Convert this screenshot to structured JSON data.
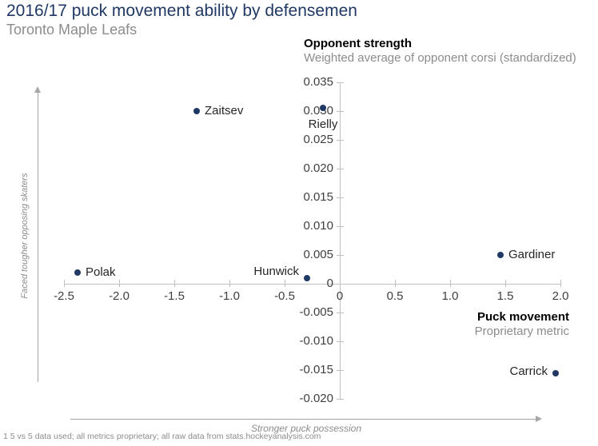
{
  "header": {
    "title": "2016/17 puck movement ability by defensemen",
    "subtitle": "Toronto Maple Leafs"
  },
  "chart_data": {
    "type": "scatter",
    "title": "2016/17 puck movement ability by defensemen",
    "subtitle": "Toronto Maple Leafs",
    "xlabel": "Puck movement",
    "xlabel_sub": "Proprietary metric",
    "ylabel": "Opponent strength",
    "ylabel_sub": "Weighted average of opponent corsi (standardized)",
    "xlim": [
      -2.5,
      2.0
    ],
    "ylim": [
      -0.02,
      0.035
    ],
    "grid": false,
    "legend": "none",
    "x_tick_values": [
      -2.5,
      -2.0,
      -1.5,
      -1.0,
      -0.5,
      0,
      0.5,
      1.0,
      1.5,
      2.0
    ],
    "x_tick_labels": [
      "-2.5",
      "-2.0",
      "-1.5",
      "-1.0",
      "-0.5",
      "0",
      "0.5",
      "1.0",
      "1.5",
      "2.0"
    ],
    "y_tick_values": [
      0.035,
      0.03,
      0.025,
      0.02,
      0.015,
      0.01,
      0.005,
      0,
      -0.005,
      -0.01,
      -0.015,
      -0.02
    ],
    "y_tick_labels": [
      "0.035",
      "0.030",
      "0.025",
      "0.020",
      "0.015",
      "0.010",
      "0.005",
      "0",
      "-0.005",
      "-0.010",
      "-0.015",
      "-0.020"
    ],
    "points": [
      {
        "label": "Zaitsev",
        "x": -1.3,
        "y": 0.03,
        "label_side": "right",
        "label_offset": [
          0,
          0
        ]
      },
      {
        "label": "Rielly",
        "x": -0.15,
        "y": 0.0305,
        "label_side": "below",
        "label_offset": [
          0,
          7
        ]
      },
      {
        "label": "Polak",
        "x": -2.38,
        "y": 0.002,
        "label_side": "right",
        "label_offset": [
          0,
          0
        ]
      },
      {
        "label": "Hunwick",
        "x": -0.3,
        "y": 0.001,
        "label_side": "left",
        "label_offset": [
          0,
          -8
        ]
      },
      {
        "label": "Gardiner",
        "x": 1.46,
        "y": 0.005,
        "label_side": "right",
        "label_offset": [
          0,
          0
        ]
      },
      {
        "label": "Carrick",
        "x": 1.96,
        "y": -0.0155,
        "label_side": "left",
        "label_offset": [
          0,
          -2
        ]
      }
    ]
  },
  "annotations": {
    "y_arrow_label": "Faced tougher opposing skaters",
    "x_arrow_label": "Stronger puck possession"
  },
  "footer": {
    "note": "1 5 vs 5 data used; all metrics proprietary; all raw data from stats.hockeyanalysis.com"
  },
  "colors": {
    "title": "#1f3864",
    "subtitle": "#8c8c8c",
    "point": "#1f3864",
    "axis": "#bfbfbf",
    "arrow": "#a6a6a6",
    "tick_label": "#404040"
  }
}
